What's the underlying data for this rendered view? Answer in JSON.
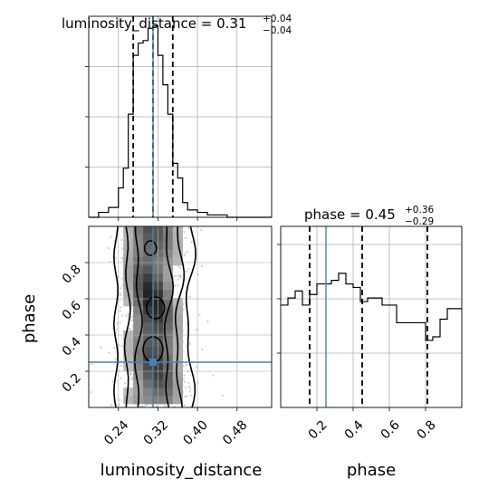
{
  "chart_data": {
    "type": "corner",
    "parameters": [
      "luminosity_distance",
      "phase"
    ],
    "truth": {
      "luminosity_distance": 0.31,
      "phase": 0.25
    },
    "panels": [
      {
        "kind": "histogram",
        "parameter": "luminosity_distance",
        "title_name": "luminosity_distance",
        "title_value": "0.31",
        "title_plus": "+0.04",
        "title_minus": "−0.04",
        "xlim": [
          0.18,
          0.55
        ],
        "grid": true,
        "bin_edges": [
          0.18,
          0.2,
          0.22,
          0.24,
          0.25,
          0.26,
          0.27,
          0.28,
          0.29,
          0.3,
          0.31,
          0.32,
          0.33,
          0.34,
          0.35,
          0.36,
          0.37,
          0.38,
          0.4,
          0.42,
          0.44,
          0.46,
          0.48,
          0.5,
          0.55
        ],
        "counts": [
          0,
          2,
          4,
          12,
          20,
          42,
          66,
          71,
          72,
          77,
          78,
          66,
          54,
          42,
          22,
          16,
          6,
          3,
          2,
          1,
          1,
          0,
          0,
          0
        ],
        "quantile_lines": [
          0.27,
          0.31,
          0.35
        ]
      },
      {
        "kind": "histogram",
        "parameter": "phase",
        "title_name": "phase",
        "title_value": "0.45",
        "title_plus": "+0.36",
        "title_minus": "−0.29",
        "xlim": [
          0.0,
          1.0
        ],
        "grid": true,
        "bin_edges": [
          0.0,
          0.04,
          0.08,
          0.12,
          0.16,
          0.2,
          0.24,
          0.28,
          0.32,
          0.36,
          0.4,
          0.44,
          0.48,
          0.52,
          0.56,
          0.6,
          0.64,
          0.68,
          0.72,
          0.76,
          0.8,
          0.84,
          0.88,
          0.92,
          0.96,
          1.0
        ],
        "counts": [
          29,
          31,
          33,
          29,
          32,
          35,
          35,
          36,
          38,
          35,
          34,
          30,
          31,
          31,
          29,
          29,
          24,
          24,
          24,
          24,
          19,
          20,
          25,
          28,
          28
        ],
        "quantile_lines": [
          0.16,
          0.45,
          0.81
        ],
        "x_ticks": [
          "0.2",
          "0.4",
          "0.6",
          "0.8"
        ],
        "x_tick_values": [
          0.2,
          0.4,
          0.6,
          0.8
        ],
        "xlabel": "phase"
      },
      {
        "kind": "2d-density",
        "x_parameter": "luminosity_distance",
        "y_parameter": "phase",
        "xlim": [
          0.18,
          0.55
        ],
        "ylim": [
          0.0,
          1.0
        ],
        "x_ticks": [
          "0.24",
          "0.32",
          "0.40",
          "0.48"
        ],
        "x_tick_values": [
          0.24,
          0.32,
          0.4,
          0.48
        ],
        "y_ticks": [
          "0.2",
          "0.4",
          "0.6",
          "0.8"
        ],
        "y_tick_values": [
          0.2,
          0.4,
          0.6,
          0.8
        ],
        "xlabel": "luminosity_distance",
        "ylabel": "phase",
        "grid": true,
        "marginal_x_center": 0.31,
        "marginal_x_sigma": 0.037
      }
    ]
  },
  "colors": {
    "truth": "#4682b4",
    "grid": "#b0b0b0",
    "axes": "#000000",
    "points": "#6e6e6e",
    "density_dark": "#111111"
  }
}
